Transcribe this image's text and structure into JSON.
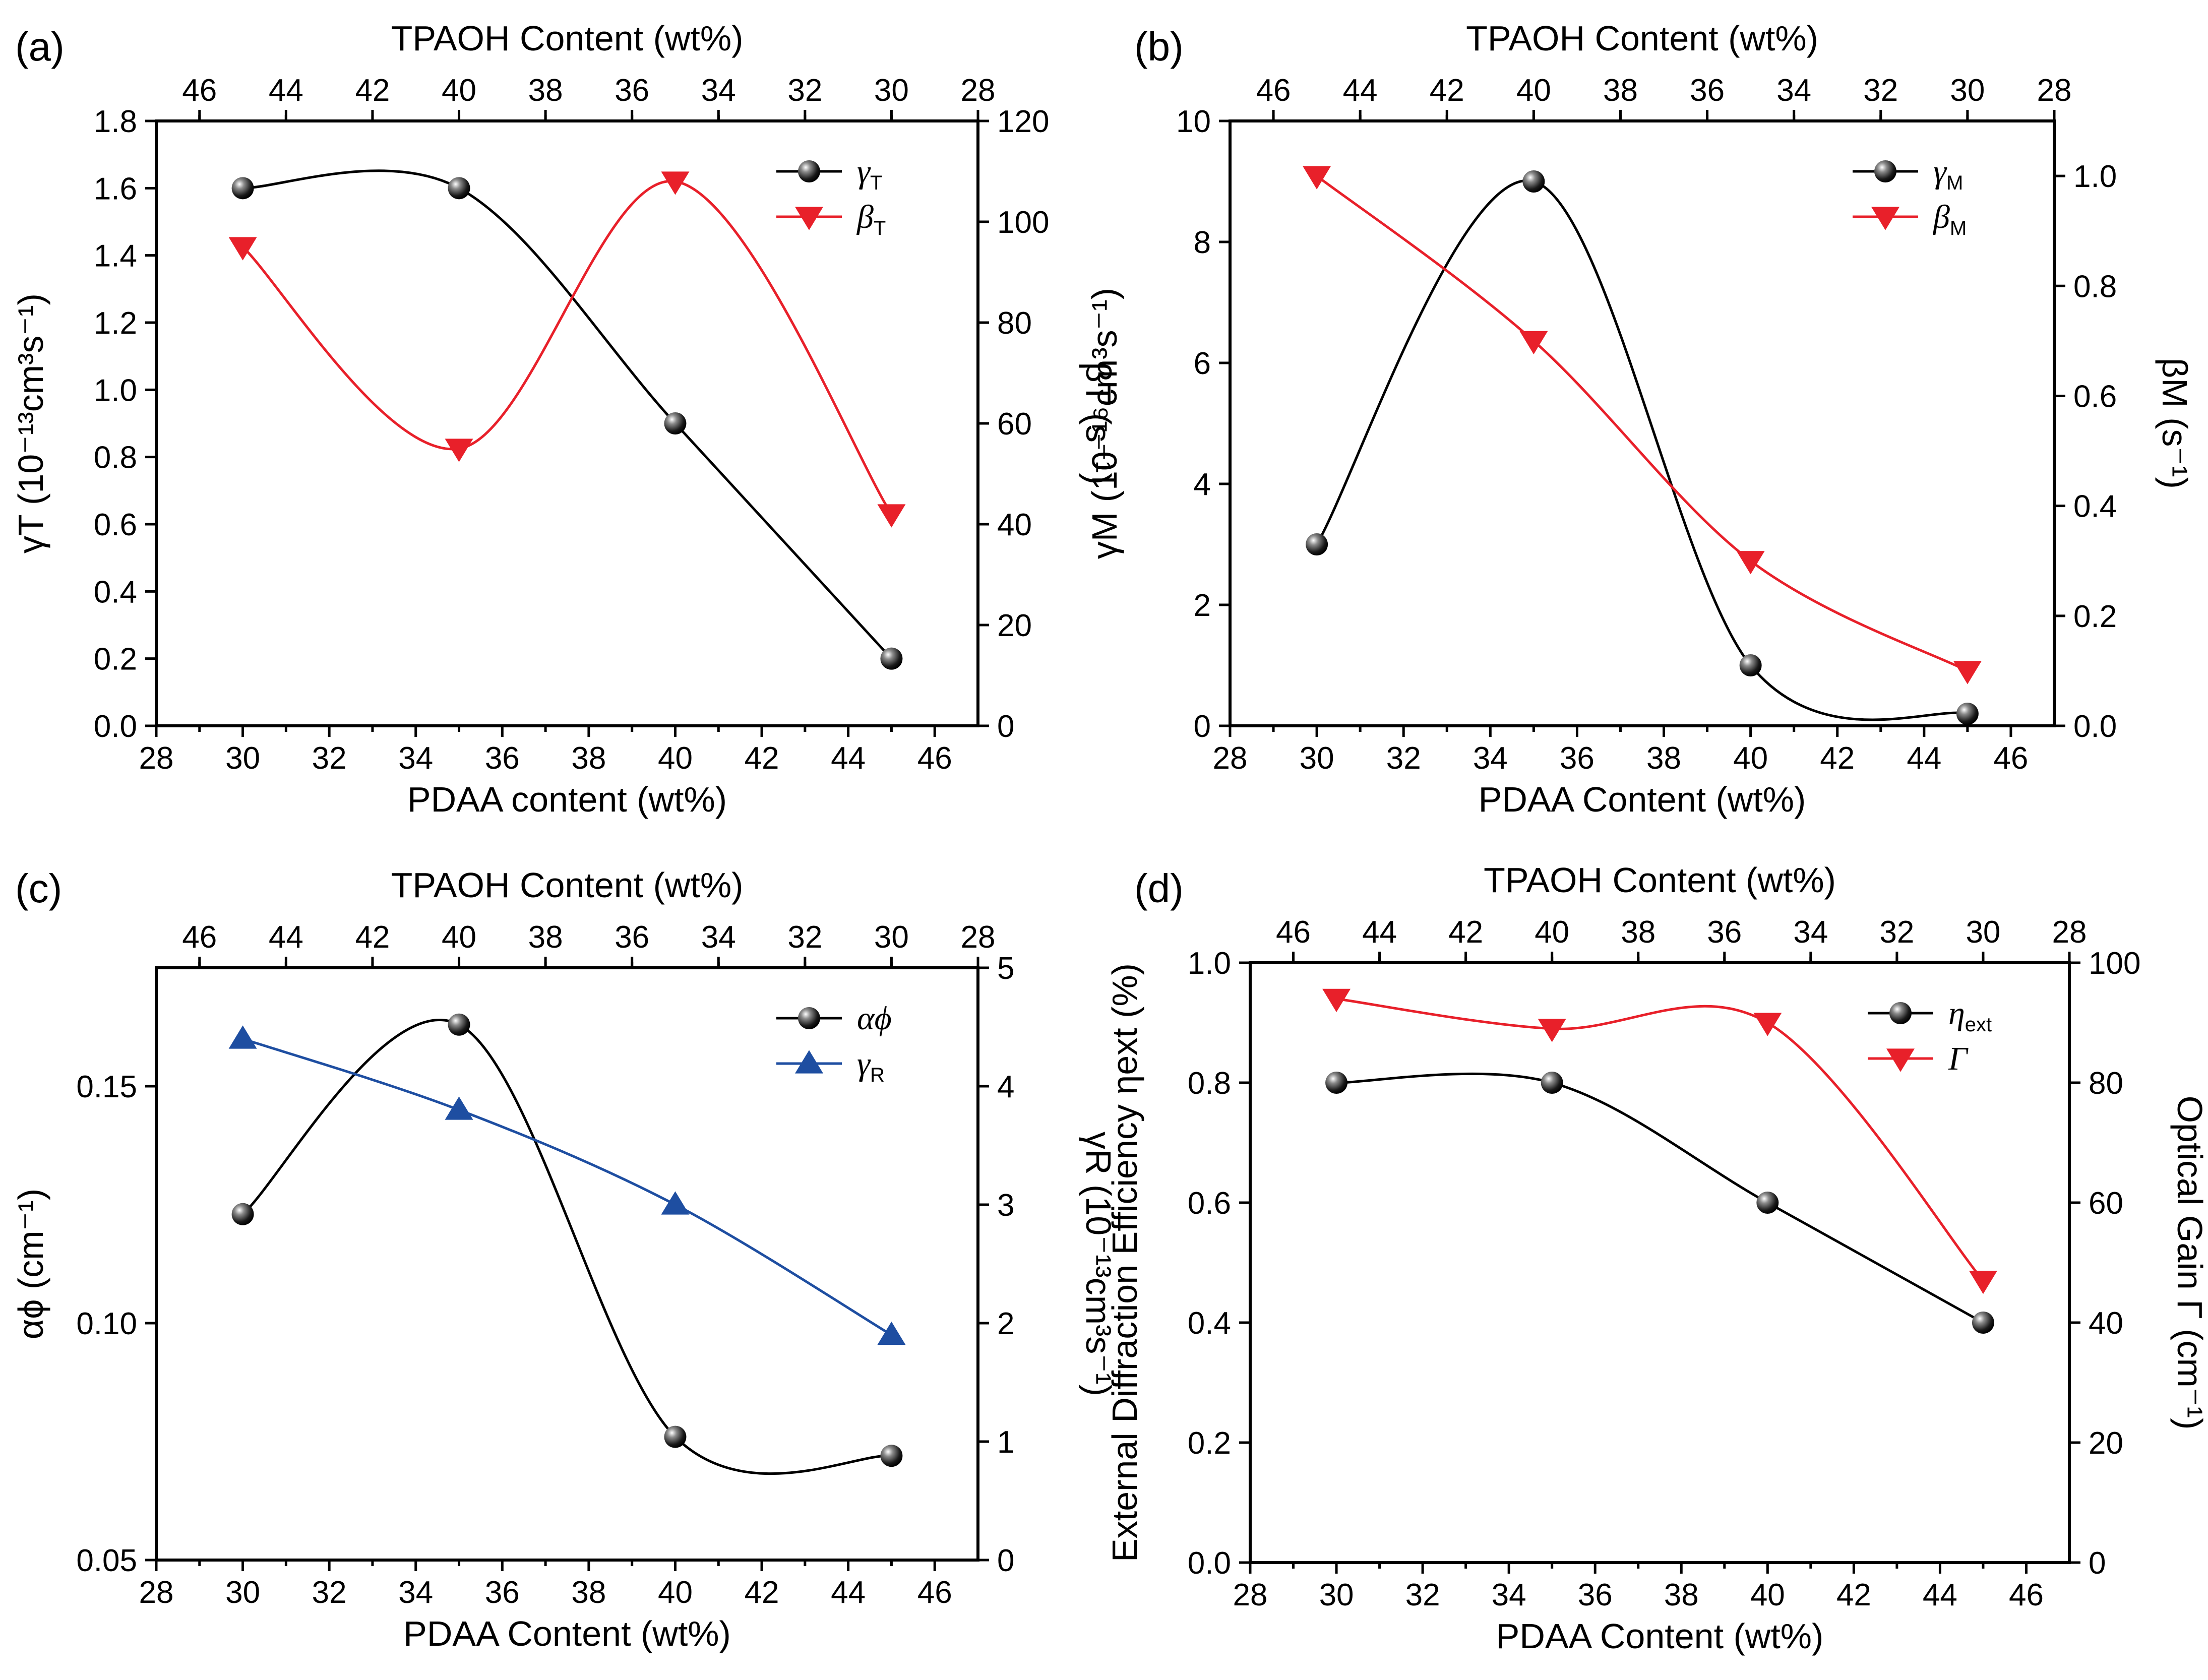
{
  "figure": {
    "panels": [
      "(a)",
      "(b)",
      "(c)",
      "(d)"
    ]
  },
  "colors": {
    "black": "#000000",
    "red": "#e8202a",
    "blue": "#1e4ea1",
    "marker_black": "#1a1a1a"
  },
  "chart_data": [
    {
      "panel": "(a)",
      "type": "line",
      "xlabel": "PDAA content (wt%)",
      "top_xlabel": "TPAOH Content (wt%)",
      "xlim": [
        28,
        47
      ],
      "xticks": [
        28,
        30,
        32,
        34,
        36,
        38,
        40,
        42,
        44,
        46
      ],
      "top_ticks": [
        46,
        44,
        42,
        40,
        38,
        36,
        34,
        32,
        30,
        28
      ],
      "top_ticks_note": "TPAOH = 75 - PDAA",
      "left_axis": {
        "label": "γT (10⁻¹³cm³s⁻¹)",
        "ylim": [
          0,
          1.8
        ],
        "ticks": [
          0.0,
          0.2,
          0.4,
          0.6,
          0.8,
          1.0,
          1.2,
          1.4,
          1.6,
          1.8
        ],
        "decimals": 1
      },
      "right_axis": {
        "label": "βT (s⁻¹)",
        "ylim": [
          0,
          120
        ],
        "ticks": [
          0,
          20,
          40,
          60,
          80,
          100,
          120
        ],
        "decimals": 0
      },
      "legend_position": "top-right",
      "series": [
        {
          "name": "γT",
          "legend_main": "γ",
          "legend_sub": "T",
          "axis": "left",
          "marker": "ball",
          "color": "#000000",
          "x": [
            30,
            35,
            40,
            45
          ],
          "y": [
            1.6,
            1.6,
            0.9,
            0.2
          ]
        },
        {
          "name": "βT",
          "legend_main": "β",
          "legend_sub": "T",
          "axis": "right",
          "marker": "triangle-down",
          "color": "#e8202a",
          "x": [
            30,
            35,
            40,
            45
          ],
          "y": [
            95,
            55,
            108,
            42
          ]
        }
      ]
    },
    {
      "panel": "(b)",
      "type": "line",
      "xlabel": "PDAA Content (wt%)",
      "top_xlabel": "TPAOH Content (wt%)",
      "xlim": [
        28,
        47
      ],
      "xticks": [
        28,
        30,
        32,
        34,
        36,
        38,
        40,
        42,
        44,
        46
      ],
      "top_ticks": [
        46,
        44,
        42,
        40,
        38,
        36,
        34,
        32,
        30,
        28
      ],
      "left_axis": {
        "label": "γM (10⁻¹⁶cm³s⁻¹)",
        "ylim": [
          0,
          10
        ],
        "ticks": [
          0,
          2,
          4,
          6,
          8,
          10
        ],
        "decimals": 0
      },
      "right_axis": {
        "label": "βM (s⁻¹)",
        "ylim": [
          0,
          1.1
        ],
        "ticks": [
          0.0,
          0.2,
          0.4,
          0.6,
          0.8,
          1.0
        ],
        "decimals": 1
      },
      "legend_position": "top-right",
      "series": [
        {
          "name": "γM",
          "legend_main": "γ",
          "legend_sub": "M",
          "axis": "left",
          "marker": "ball",
          "color": "#000000",
          "x": [
            30,
            35,
            40,
            45
          ],
          "y": [
            3.0,
            9.0,
            1.0,
            0.2
          ]
        },
        {
          "name": "βM",
          "legend_main": "β",
          "legend_sub": "M",
          "axis": "right",
          "marker": "triangle-down",
          "color": "#e8202a",
          "x": [
            30,
            35,
            40,
            45
          ],
          "y": [
            1.0,
            0.7,
            0.3,
            0.1
          ]
        }
      ]
    },
    {
      "panel": "(c)",
      "type": "line",
      "xlabel": "PDAA Content (wt%)",
      "top_xlabel": "TPAOH Content (wt%)",
      "xlim": [
        28,
        47
      ],
      "xticks": [
        28,
        30,
        32,
        34,
        36,
        38,
        40,
        42,
        44,
        46
      ],
      "top_ticks": [
        46,
        44,
        42,
        40,
        38,
        36,
        34,
        32,
        30,
        28
      ],
      "left_axis": {
        "label": "αϕ (cm⁻¹)",
        "ylim": [
          0.05,
          0.175
        ],
        "ticks": [
          0.05,
          0.1,
          0.15
        ],
        "decimals": 2
      },
      "right_axis": {
        "label": "γR (10⁻¹³cm³s⁻¹)",
        "ylim": [
          0,
          5
        ],
        "ticks": [
          0,
          1,
          2,
          3,
          4,
          5
        ],
        "decimals": 0
      },
      "legend_position": "top-right",
      "series": [
        {
          "name": "αϕ",
          "legend_main": "αϕ",
          "legend_sub": "",
          "axis": "left",
          "marker": "ball",
          "color": "#000000",
          "x": [
            30,
            35,
            40,
            45
          ],
          "y": [
            0.123,
            0.163,
            0.076,
            0.072
          ]
        },
        {
          "name": "γR",
          "legend_main": "γ",
          "legend_sub": "R",
          "axis": "right",
          "marker": "triangle-up",
          "color": "#1e4ea1",
          "x": [
            30,
            35,
            40,
            45
          ],
          "y": [
            4.4,
            3.8,
            3.0,
            1.9
          ]
        }
      ]
    },
    {
      "panel": "(d)",
      "type": "line",
      "xlabel": "PDAA Content (wt%)",
      "top_xlabel": "TPAOH Content (wt%)",
      "xlim": [
        28,
        47
      ],
      "xticks": [
        28,
        30,
        32,
        34,
        36,
        38,
        40,
        42,
        44,
        46
      ],
      "top_ticks": [
        46,
        44,
        42,
        40,
        38,
        36,
        34,
        32,
        30,
        28
      ],
      "left_axis": {
        "label": "External Diffraction Efficiency ηext (%)",
        "ylim": [
          0,
          1.0
        ],
        "ticks": [
          0.0,
          0.2,
          0.4,
          0.6,
          0.8,
          1.0
        ],
        "decimals": 1
      },
      "right_axis": {
        "label": "Optical Gain Γ (cm⁻¹)",
        "ylim": [
          0,
          100
        ],
        "ticks": [
          0,
          20,
          40,
          60,
          80,
          100
        ],
        "decimals": 0
      },
      "legend_position": "top-right",
      "series": [
        {
          "name": "ηext",
          "legend_main": "η",
          "legend_sub": "ext",
          "axis": "left",
          "marker": "ball",
          "color": "#000000",
          "x": [
            30,
            35,
            40,
            45
          ],
          "y": [
            0.8,
            0.8,
            0.6,
            0.4
          ]
        },
        {
          "name": "Γ",
          "legend_main": "Γ",
          "legend_sub": "",
          "axis": "right",
          "marker": "triangle-down",
          "color": "#e8202a",
          "x": [
            30,
            35,
            40,
            45
          ],
          "y": [
            94,
            89,
            90,
            47
          ]
        }
      ]
    }
  ]
}
